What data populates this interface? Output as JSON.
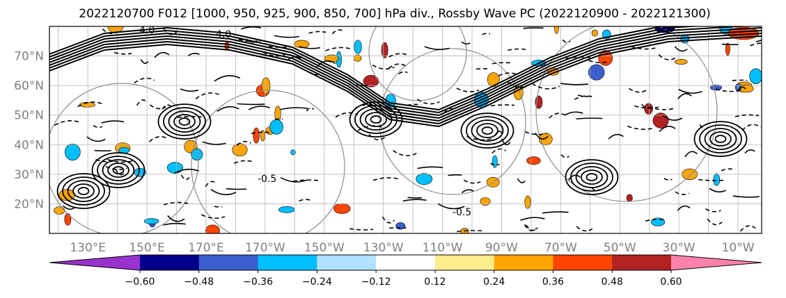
{
  "chart_data": {
    "type": "heatmap",
    "title": "2022120700 F012 [1000, 950, 925, 900, 850, 700] hPa div., Rossby Wave PC (2022120900 - 2022121300)",
    "map": {
      "projection": "PlateCarree",
      "lon_range": [
        117,
        358
      ],
      "lat_range": [
        10,
        80
      ],
      "gridlines": true,
      "grid_lon_step": 10,
      "grid_lat_step": 10
    },
    "y_tick_labels": [
      "70°N",
      "60°N",
      "50°N",
      "40°N",
      "30°N",
      "20°N"
    ],
    "y_tick_values": [
      70,
      60,
      50,
      40,
      30,
      20
    ],
    "x_tick_labels": [
      "130°E",
      "150°E",
      "170°E",
      "170°W",
      "150°W",
      "130°W",
      "110°W",
      "90°W",
      "70°W",
      "50°W",
      "30°W",
      "10°W"
    ],
    "x_tick_values": [
      130,
      150,
      170,
      190,
      210,
      230,
      250,
      270,
      290,
      310,
      330,
      350
    ],
    "colorbar": {
      "orientation": "horizontal",
      "location": "bottom",
      "extend": "both",
      "levels": [
        -0.6,
        -0.48,
        -0.36,
        -0.24,
        -0.12,
        0.12,
        0.24,
        0.36,
        0.48,
        0.6
      ],
      "tick_labels": [
        "−0.60",
        "−0.48",
        "−0.36",
        "−0.24",
        "−0.12",
        "0.12",
        "0.24",
        "0.36",
        "0.48",
        "0.60"
      ],
      "colors": [
        "#9932cc",
        "#00008b",
        "#3a5fcd",
        "#00bfff",
        "#b0e2ff",
        "#ffffff",
        "#ffec8b",
        "#ffa500",
        "#ff4500",
        "#b22222",
        "#ff82ab"
      ]
    },
    "contour_labels": [
      "-4.0",
      "4.0",
      "-0.5",
      "-0.5"
    ],
    "contours": {
      "color": "#000000",
      "positive_style": "solid",
      "negative_style": "dashed"
    }
  }
}
